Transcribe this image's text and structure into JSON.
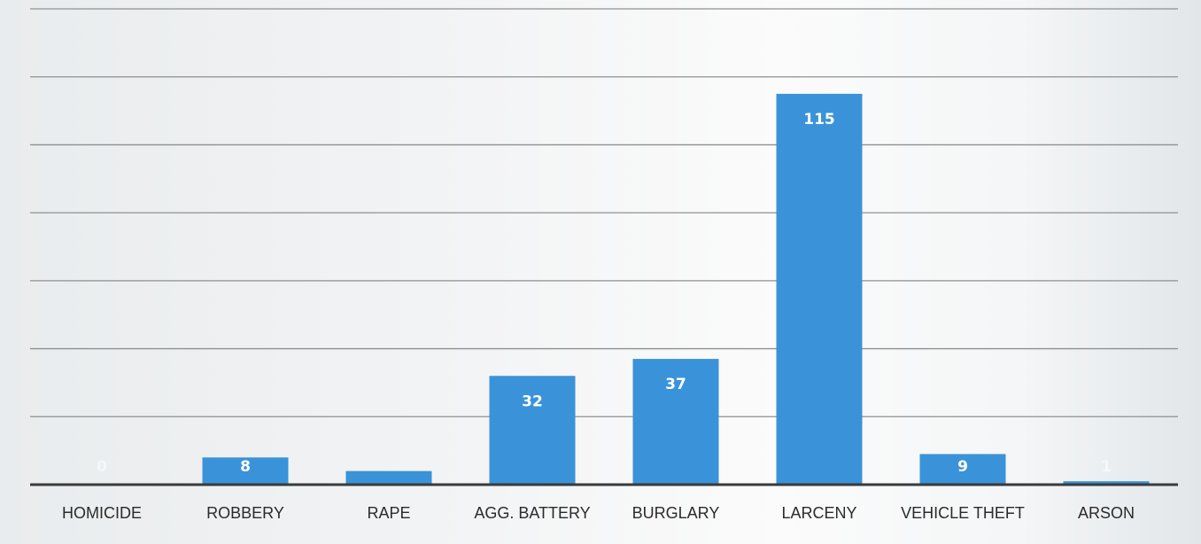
{
  "chart_data": {
    "type": "bar",
    "categories": [
      "HOMICIDE",
      "ROBBERY",
      "RAPE",
      "AGG. BATTERY",
      "BURGLARY",
      "LARCENY",
      "VEHICLE THEFT",
      "ARSON"
    ],
    "values": [
      0,
      8,
      4,
      32,
      37,
      115,
      9,
      1
    ],
    "data_labels": [
      "0",
      "8",
      "",
      "32",
      "37",
      "115",
      "9",
      "1"
    ],
    "title": "",
    "xlabel": "",
    "ylabel": "",
    "ylim": [
      0,
      140
    ],
    "y_tick_step": 20,
    "y_tick_labels_shown": false,
    "grid": true,
    "legend": "none",
    "colors": {
      "bar": "#3a93d8",
      "grid": "#8f8f8f",
      "axis": "#3a3a3a",
      "data_label": "#ffffff",
      "category_label": "#2b2b2b"
    }
  }
}
